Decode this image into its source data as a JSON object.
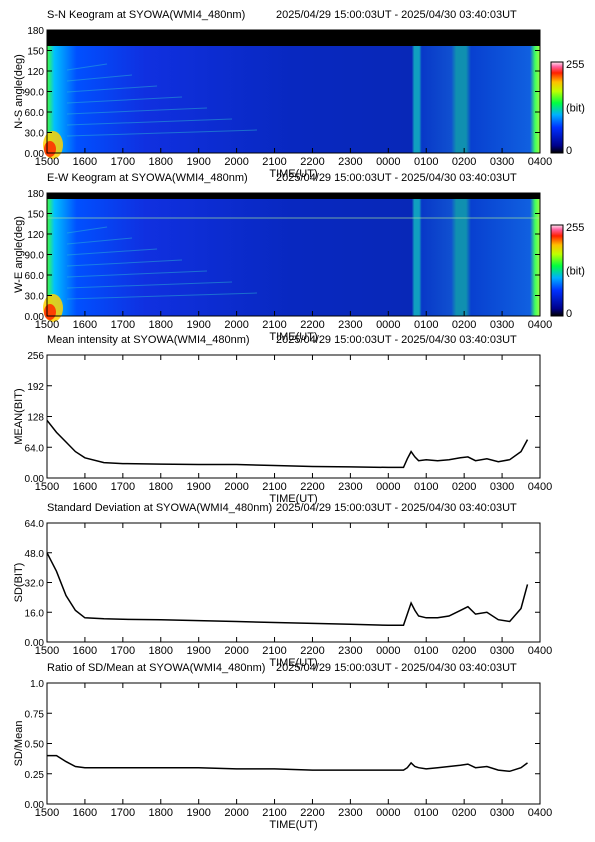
{
  "x_ticks": [
    "1500",
    "1600",
    "1700",
    "1800",
    "1900",
    "2000",
    "2100",
    "2200",
    "2300",
    "0000",
    "0100",
    "0200",
    "0300",
    "0400"
  ],
  "xlabel": "TIME(UT)",
  "colorbar": {
    "max_label": "255",
    "unit_label": "(bit)",
    "min_label": "0"
  },
  "chart_data": [
    {
      "type": "heatmap",
      "title": "S-N Keogram at SYOWA(WMI4_480nm)",
      "subtitle": "2025/04/29 15:00:03UT - 2025/04/30 03:40:03UT",
      "ylabel": "N-S angle(deg)",
      "y_ticks": [
        "0.00",
        "30.0",
        "60.0",
        "90.0",
        "120",
        "150",
        "180"
      ],
      "ylim": [
        0,
        180
      ],
      "colorbar_range": [
        0,
        255
      ]
    },
    {
      "type": "heatmap",
      "title": "E-W Keogram at SYOWA(WMI4_480nm)",
      "subtitle": "2025/04/29 15:00:03UT - 2025/04/30 03:40:03UT",
      "ylabel": "W-E angle(deg)",
      "y_ticks": [
        "0.00",
        "30.0",
        "60.0",
        "90.0",
        "120",
        "150",
        "180"
      ],
      "ylim": [
        0,
        180
      ],
      "colorbar_range": [
        0,
        255
      ]
    },
    {
      "type": "line",
      "title": "Mean intensity at SYOWA(WMI4_480nm)",
      "subtitle": "2025/04/29 15:00:03UT - 2025/04/30 03:40:03UT",
      "ylabel": "MEAN(BIT)",
      "y_ticks": [
        "0.00",
        "64.0",
        "128",
        "192",
        "256"
      ],
      "ylim": [
        0,
        256
      ],
      "x": [
        0,
        0.25,
        0.5,
        0.75,
        1,
        1.5,
        2,
        3,
        4,
        5,
        6,
        7,
        8,
        9,
        9.4,
        9.5,
        9.6,
        9.7,
        9.8,
        10,
        10.3,
        10.6,
        10.9,
        11.1,
        11.3,
        11.6,
        11.9,
        12.2,
        12.5,
        12.67
      ],
      "y": [
        120,
        95,
        75,
        55,
        42,
        32,
        30,
        29,
        28,
        28,
        26,
        24,
        23,
        22,
        22,
        40,
        55,
        44,
        36,
        38,
        36,
        38,
        42,
        44,
        36,
        40,
        34,
        38,
        55,
        80
      ]
    },
    {
      "type": "line",
      "title": "Standard Deviation at SYOWA(WMI4_480nm)",
      "subtitle": "2025/04/29 15:00:03UT - 2025/04/30 03:40:03UT",
      "ylabel": "SD(BIT)",
      "y_ticks": [
        "0.00",
        "16.0",
        "32.0",
        "48.0",
        "64.0"
      ],
      "ylim": [
        0,
        64
      ],
      "x": [
        0,
        0.25,
        0.5,
        0.75,
        1,
        1.5,
        2,
        3,
        4,
        5,
        6,
        7,
        8,
        9,
        9.4,
        9.5,
        9.6,
        9.7,
        9.8,
        10,
        10.3,
        10.6,
        10.9,
        11.1,
        11.3,
        11.6,
        11.9,
        12.2,
        12.5,
        12.67
      ],
      "y": [
        48,
        38,
        25,
        17,
        13,
        12.5,
        12.2,
        12,
        11.5,
        11,
        10.5,
        10,
        9.5,
        9,
        9,
        15,
        21,
        17,
        14,
        13,
        13,
        14,
        17,
        19,
        15,
        16,
        12,
        11,
        18,
        31
      ]
    },
    {
      "type": "line",
      "title": "Ratio of SD/Mean at SYOWA(WMI4_480nm)",
      "subtitle": "2025/04/29 15:00:03UT - 2025/04/30 03:40:03UT",
      "ylabel": "SD/Mean",
      "y_ticks": [
        "0.00",
        "0.25",
        "0.50",
        "0.75",
        "1.0"
      ],
      "ylim": [
        0,
        1.0
      ],
      "x": [
        0,
        0.25,
        0.5,
        0.75,
        1,
        1.5,
        2,
        3,
        4,
        5,
        6,
        7,
        8,
        9,
        9.4,
        9.5,
        9.6,
        9.7,
        9.8,
        10,
        10.3,
        10.6,
        10.9,
        11.1,
        11.3,
        11.6,
        11.9,
        12.2,
        12.5,
        12.67
      ],
      "y": [
        0.4,
        0.4,
        0.35,
        0.31,
        0.3,
        0.3,
        0.3,
        0.3,
        0.3,
        0.29,
        0.29,
        0.28,
        0.28,
        0.28,
        0.28,
        0.3,
        0.34,
        0.31,
        0.3,
        0.29,
        0.3,
        0.31,
        0.32,
        0.33,
        0.3,
        0.31,
        0.28,
        0.27,
        0.3,
        0.34
      ]
    }
  ]
}
